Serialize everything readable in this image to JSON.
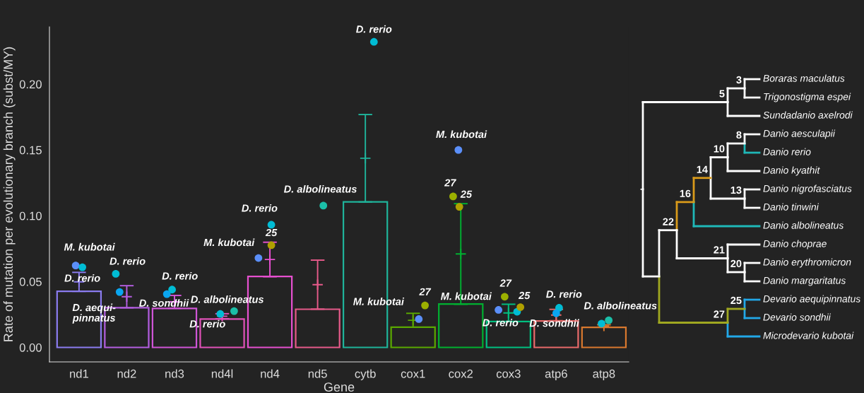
{
  "chart_data": [
    {
      "type": "bar",
      "xlabel": "Gene",
      "ylabel": "Rate of mutation per evolutionary branch (subst/MY)",
      "categories": [
        "nd1",
        "nd2",
        "nd3",
        "nd4l",
        "nd4",
        "nd5",
        "cytb",
        "cox1",
        "cox2",
        "cox3",
        "atp6",
        "atp8"
      ],
      "values": [
        0.0426,
        0.0301,
        0.0296,
        0.0215,
        0.0539,
        0.029,
        0.1106,
        0.0154,
        0.033,
        0.0197,
        0.0201,
        0.0152
      ],
      "colors": [
        "#8b7cf0",
        "#b35ee0",
        "#cf55d6",
        "#e052b8",
        "#e650d0",
        "#e65a8a",
        "#1fb39a",
        "#5aa800",
        "#00b030",
        "#00c080",
        "#e86a6a",
        "#d9782e"
      ],
      "series": [
        {
          "type": "scatter",
          "marker": "cross",
          "colors": [
            "#8b7cf0",
            "#b35ee0",
            "#cf55d6",
            "#e052b8",
            "#e650d0",
            "#e65a8a",
            "#1fb39a",
            "#5aa800",
            "#00b030",
            "#00c080",
            "#e86a6a",
            "#d9782e"
          ],
          "values": [
            0.0498,
            0.0385,
            0.0346,
            0.0237,
            0.0668,
            0.0477,
            0.1437,
            0.0206,
            0.071,
            0.0262,
            0.0246,
            0.0163
          ],
          "errors": [
            0.0072,
            0.0084,
            0.0049,
            0.0019,
            0.0131,
            0.0186,
            0.0332,
            0.0053,
            0.0382,
            0.0066,
            0.0043,
            0.0009
          ]
        },
        {
          "type": "scatter",
          "marker": "circle",
          "name": "M. kubotai",
          "color": "#5b8ff9",
          "values": [
            0.0622,
            null,
            null,
            null,
            0.0679,
            null,
            null,
            0.0215,
            0.15,
            0.0285,
            null,
            null
          ]
        },
        {
          "type": "scatter",
          "marker": "circle",
          "name": "D. rerio",
          "color": "#00bcd4",
          "values": [
            0.0609,
            0.0559,
            0.0439,
            0.0254,
            0.0932,
            null,
            0.2321,
            null,
            null,
            0.0271,
            0.0301,
            null
          ]
        },
        {
          "type": "scatter",
          "marker": "circle",
          "name": "D. aequi-\npinnatus",
          "color": "#0aa6f0",
          "values": [
            null,
            0.0421,
            null,
            null,
            null,
            null,
            null,
            null,
            null,
            null,
            null,
            null
          ]
        },
        {
          "type": "scatter",
          "marker": "circle",
          "name": "D. sondhii",
          "color": "#0aa6f0",
          "values": [
            null,
            null,
            0.0405,
            null,
            null,
            null,
            null,
            null,
            null,
            null,
            0.026,
            null
          ]
        },
        {
          "type": "scatter",
          "marker": "circle",
          "name": "D. albolineatus",
          "color": "#1bbfa8",
          "values": [
            null,
            null,
            null,
            0.0276,
            null,
            0.1077,
            null,
            null,
            null,
            null,
            null,
            0.0206
          ]
        },
        {
          "type": "scatter",
          "marker": "circle",
          "name": "25",
          "color": "#b0a000",
          "values": [
            null,
            null,
            null,
            null,
            0.0776,
            null,
            null,
            null,
            0.1068,
            0.0306,
            null,
            null
          ]
        },
        {
          "type": "scatter",
          "marker": "circle",
          "name": "27",
          "color": "#9bb000",
          "values": [
            null,
            null,
            null,
            null,
            null,
            null,
            null,
            0.0319,
            0.1147,
            0.0385,
            null,
            null
          ]
        },
        {
          "type": "scatter",
          "marker": "circle",
          "color": "#00bcd4",
          "values": [
            null,
            null,
            null,
            null,
            null,
            null,
            null,
            null,
            null,
            null,
            null,
            0.0181
          ]
        }
      ],
      "ylim": [
        -0.011,
        0.2435
      ],
      "yticks": [
        {
          "value": 0,
          "label": "0.00"
        },
        {
          "value": 0.05,
          "label": "0.05"
        },
        {
          "value": 0.1,
          "label": "0.10"
        },
        {
          "value": 0.15,
          "label": "0.15"
        },
        {
          "value": 0.2,
          "label": "0.20"
        }
      ],
      "grid": false,
      "legend": false
    },
    {
      "type": "other",
      "annotations": [
        "Boraras maculatus",
        "Trigonostigma espei",
        "Sundadanio axelrodi",
        "Danio aesculapii",
        "Danio rerio",
        "Danio kyathit",
        "Danio nigrofasciatus",
        "Danio tinwini",
        "Danio albolineatus",
        "Danio choprae",
        "Danio erythromicron",
        "Danio margaritatus",
        "Devario aequipinnatus",
        "Devario sondhii",
        "Microdevario kubotai",
        "3",
        "5",
        "8",
        "10",
        "13",
        "14",
        "16",
        "20",
        "21",
        "22",
        "25",
        "27"
      ]
    }
  ]
}
